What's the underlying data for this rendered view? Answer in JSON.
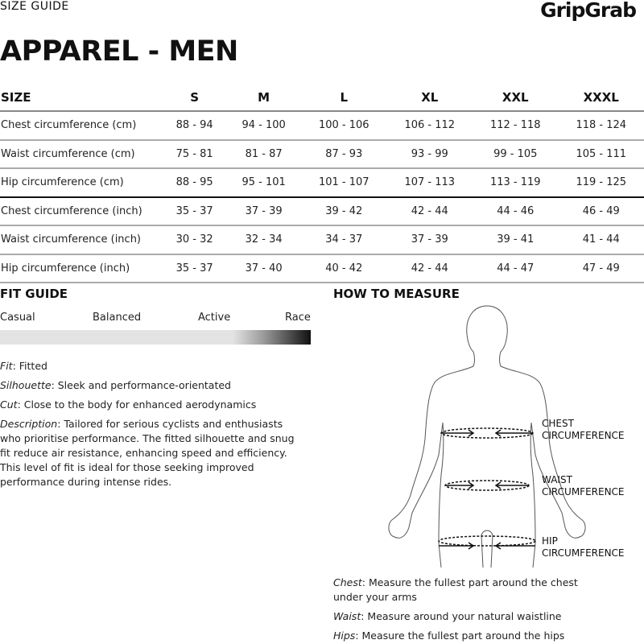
{
  "header": {
    "section": "SIZE GUIDE",
    "logo": "GripGrab",
    "title": "APPAREL - MEN"
  },
  "table": {
    "headers": [
      "SIZE",
      "S",
      "M",
      "L",
      "XL",
      "XXL",
      "XXXL"
    ],
    "rows": [
      [
        "Chest circumference (cm)",
        "88 - 94",
        "94 - 100",
        "100 - 106",
        "106 - 112",
        "112 - 118",
        "118 - 124"
      ],
      [
        "Waist circumference (cm)",
        "75 - 81",
        "81 - 87",
        "87 - 93",
        "93 - 99",
        "99 - 105",
        "105 - 111"
      ],
      [
        "Hip circumference (cm)",
        "88 - 95",
        "95 - 101",
        "101 - 107",
        "107 - 113",
        "113 - 119",
        "119 - 125"
      ],
      [
        "Chest circumference (inch)",
        "35 - 37",
        "37 - 39",
        "39 - 42",
        "42 - 44",
        "44 - 46",
        "46 - 49"
      ],
      [
        "Waist circumference (inch)",
        "30 - 32",
        "32 - 34",
        "34 - 37",
        "37 - 39",
        "39 - 41",
        "41 - 44"
      ],
      [
        "Hip circumference (inch)",
        "35 - 37",
        "37 - 40",
        "40 - 42",
        "42 - 44",
        "44 - 47",
        "47 - 49"
      ]
    ]
  },
  "fit_guide": {
    "title": "FIT GUIDE",
    "levels": [
      "Casual",
      "Balanced",
      "Active",
      "Race"
    ],
    "selected": "Race",
    "fit_label": "Fit",
    "fit": ": Fitted",
    "silhouette_label": "Silhouette",
    "silhouette": ": Sleek and performance-orientated",
    "cut_label": "Cut",
    "cut": ": Close to the body for enhanced aerodynamics",
    "description_label": "Description",
    "description": ": Tailored for serious cyclists and enthusiasts who prioritise performance. The fitted silhouette and snug fit reduce air resistance, enhancing speed and efficiency. This level of fit is ideal for those seeking improved performance during intense rides."
  },
  "how_to_measure": {
    "title": "HOW TO MEASURE",
    "chest_label": [
      "CHEST",
      "CIRCUMFERENCE"
    ],
    "waist_label": [
      "WAIST",
      "CIRCUMFERENCE"
    ],
    "hip_label": [
      "HIP",
      "CIRCUMFERENCE"
    ],
    "chest_term": "Chest",
    "chest_text": ": Measure the fullest part around the chest under your arms",
    "waist_term": "Waist",
    "waist_text": ": Measure around your natural waistline",
    "hips_term": "Hips",
    "hips_text": ": Measure the fullest part around the hips"
  }
}
